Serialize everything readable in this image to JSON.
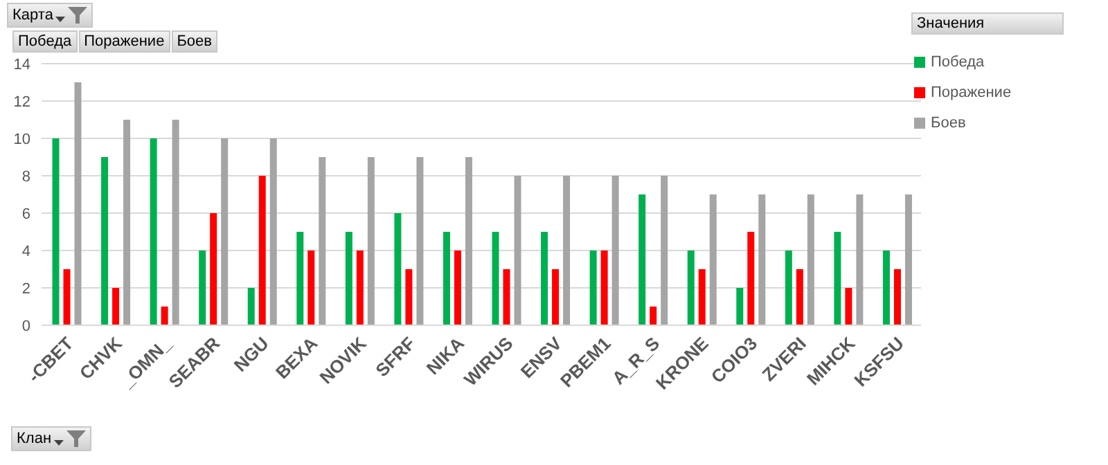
{
  "chart_data": {
    "type": "bar",
    "categories": [
      "-CBET",
      "CHVK",
      "_OMN_",
      "SEABR",
      "NGU",
      "BEXA",
      "NOVIK",
      "SFRF",
      "NIKA",
      "WIRUS",
      "ENSV",
      "PBEM1",
      "A_R_S",
      "KRONE",
      "COIO3",
      "ZVERI",
      "MIHCK",
      "KSFSU"
    ],
    "series": [
      {
        "name": "Победа",
        "color": "#00b050",
        "values": [
          10,
          9,
          10,
          4,
          2,
          5,
          5,
          6,
          5,
          5,
          5,
          4,
          7,
          4,
          2,
          4,
          5,
          4
        ]
      },
      {
        "name": "Поражение",
        "color": "#ff0000",
        "values": [
          3,
          2,
          1,
          6,
          8,
          4,
          4,
          3,
          4,
          3,
          3,
          4,
          1,
          3,
          5,
          3,
          2,
          3
        ]
      },
      {
        "name": "Боев",
        "color": "#a5a5a5",
        "values": [
          13,
          11,
          11,
          10,
          10,
          9,
          9,
          9,
          9,
          8,
          8,
          8,
          8,
          7,
          7,
          7,
          7,
          7
        ]
      }
    ],
    "ylim": [
      0,
      14
    ],
    "yticks": [
      0,
      2,
      4,
      6,
      8,
      10,
      12,
      14
    ],
    "grid": "y",
    "legend": "top right",
    "legend_title": "Значения",
    "annotations": [
      "Карта",
      "Победа",
      "Поражение",
      "Боев",
      "Клан"
    ]
  }
}
